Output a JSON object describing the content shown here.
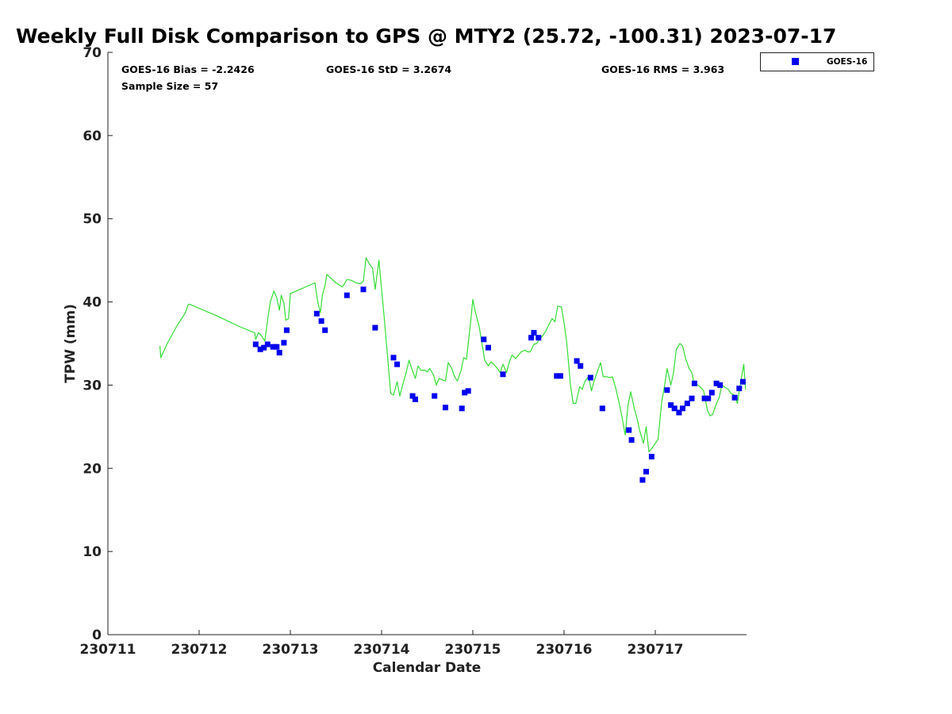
{
  "chart_data": {
    "type": "scatter",
    "title": "Weekly Full Disk Comparison to GPS @ MTY2 (25.72, -100.31) 2023-07-17",
    "xlabel": "Calendar Date",
    "ylabel": "TPW (mm)",
    "xlim_days": [
      11,
      18
    ],
    "ylim": [
      0,
      70
    ],
    "yticks": [
      0,
      10,
      20,
      30,
      40,
      50,
      60,
      70
    ],
    "xticks": [
      {
        "day": 11,
        "label": "230711"
      },
      {
        "day": 12,
        "label": "230712"
      },
      {
        "day": 13,
        "label": "230713"
      },
      {
        "day": 14,
        "label": "230714"
      },
      {
        "day": 15,
        "label": "230715"
      },
      {
        "day": 16,
        "label": "230716"
      },
      {
        "day": 17,
        "label": "230717"
      }
    ],
    "grid": false,
    "legend_position": "top-right",
    "stats": {
      "bias": "GOES-16 Bias = -2.2426",
      "std": "GOES-16 StD = 3.2674",
      "rms": "GOES-16 RMS = 3.963",
      "sample_size": "Sample Size = 57"
    },
    "colors": {
      "gps_line": "#33dd33",
      "goes16_marker": "#0000ee",
      "axis": "#222222"
    },
    "series": [
      {
        "name": "",
        "kind": "line",
        "x": [
          11.57,
          11.58,
          11.65,
          11.75,
          11.85,
          11.88,
          11.9,
          12.2,
          12.45,
          12.61,
          12.62,
          12.65,
          12.68,
          12.72,
          12.75,
          12.78,
          12.82,
          12.85,
          12.88,
          12.9,
          12.93,
          12.95,
          12.98,
          13.0,
          13.27,
          13.3,
          13.33,
          13.35,
          13.38,
          13.4,
          13.43,
          13.5,
          13.57,
          13.62,
          13.67,
          13.72,
          13.77,
          13.8,
          13.83,
          13.87,
          13.9,
          13.93,
          13.97,
          14.03,
          14.1,
          14.13,
          14.17,
          14.2,
          14.23,
          14.27,
          14.3,
          14.33,
          14.37,
          14.4,
          14.43,
          14.47,
          14.5,
          14.53,
          14.57,
          14.6,
          14.63,
          14.67,
          14.7,
          14.73,
          14.77,
          14.8,
          14.83,
          14.87,
          14.9,
          14.93,
          14.95,
          14.98,
          15.0,
          15.03,
          15.07,
          15.1,
          15.13,
          15.17,
          15.2,
          15.23,
          15.27,
          15.3,
          15.33,
          15.37,
          15.4,
          15.43,
          15.47,
          15.5,
          15.53,
          15.57,
          15.6,
          15.63,
          15.67,
          15.7,
          15.73,
          15.77,
          15.8,
          15.83,
          15.87,
          15.9,
          15.93,
          15.97,
          16.0,
          16.03,
          16.07,
          16.1,
          16.13,
          16.17,
          16.2,
          16.23,
          16.27,
          16.3,
          16.33,
          16.37,
          16.4,
          16.43,
          16.47,
          16.5,
          16.53,
          16.57,
          16.6,
          16.63,
          16.67,
          16.7,
          16.73,
          16.77,
          16.8,
          16.83,
          16.87,
          16.9,
          16.93,
          16.97,
          17.0,
          17.03,
          17.07,
          17.1,
          17.13,
          17.17,
          17.2,
          17.23,
          17.27,
          17.3,
          17.33,
          17.37,
          17.4,
          17.43,
          17.47,
          17.5,
          17.53,
          17.57,
          17.6,
          17.63,
          17.67,
          17.7,
          17.73,
          17.77,
          17.8,
          17.83,
          17.87,
          17.9,
          17.93,
          17.97,
          17.99
        ],
        "y": [
          34.7,
          33.3,
          35.0,
          37.0,
          38.7,
          39.7,
          39.7,
          38.3,
          37.0,
          36.3,
          35.5,
          36.3,
          36.0,
          35.3,
          37.8,
          40.0,
          41.3,
          40.5,
          39.0,
          40.8,
          39.8,
          37.8,
          38.0,
          41.0,
          42.3,
          40.0,
          38.7,
          40.8,
          42.0,
          43.3,
          43.0,
          42.3,
          41.8,
          42.7,
          42.6,
          42.3,
          42.2,
          42.5,
          45.3,
          44.5,
          44.1,
          41.5,
          45.0,
          38.0,
          29.0,
          28.8,
          30.4,
          28.7,
          30.0,
          31.5,
          33.0,
          32.0,
          30.8,
          32.3,
          31.8,
          31.8,
          31.6,
          32.0,
          31.2,
          30.0,
          30.8,
          30.6,
          30.5,
          32.7,
          32.0,
          31.0,
          30.5,
          31.7,
          33.3,
          33.1,
          35.0,
          38.0,
          40.3,
          38.7,
          37.0,
          35.0,
          33.0,
          32.3,
          32.8,
          32.5,
          32.0,
          31.5,
          32.5,
          31.5,
          32.8,
          33.6,
          33.2,
          33.6,
          34.0,
          34.2,
          34.0,
          34.0,
          34.9,
          35.0,
          35.5,
          36.0,
          36.5,
          37.2,
          38.0,
          37.6,
          39.5,
          39.4,
          37.5,
          35.0,
          30.0,
          27.8,
          27.8,
          29.8,
          29.5,
          30.5,
          31.0,
          29.3,
          30.5,
          31.8,
          32.7,
          31.0,
          31.0,
          30.9,
          31.0,
          29.5,
          28.0,
          26.5,
          24.0,
          27.5,
          29.2,
          27.2,
          26.0,
          24.5,
          23.0,
          25.0,
          22.0,
          22.5,
          23.0,
          23.5,
          28.0,
          29.8,
          32.0,
          30.0,
          31.5,
          34.3,
          35.0,
          34.7,
          33.3,
          32.0,
          31.5,
          30.0,
          30.0,
          29.7,
          29.3,
          27.0,
          26.3,
          26.5,
          27.8,
          28.5,
          30.0,
          29.7,
          29.5,
          29.0,
          28.8,
          27.8,
          30.0,
          32.5,
          29.5
        ]
      },
      {
        "name": "GOES-16",
        "kind": "scatter",
        "x": [
          12.62,
          12.67,
          12.71,
          12.75,
          12.81,
          12.85,
          12.88,
          12.93,
          12.96,
          13.29,
          13.34,
          13.38,
          13.62,
          13.8,
          13.93,
          14.13,
          14.17,
          14.34,
          14.37,
          14.58,
          14.7,
          14.88,
          14.91,
          14.95,
          15.12,
          15.17,
          15.33,
          15.64,
          15.67,
          15.72,
          15.92,
          15.96,
          16.14,
          16.18,
          16.29,
          16.42,
          16.71,
          16.74,
          16.86,
          16.9,
          16.96,
          17.13,
          17.17,
          17.21,
          17.26,
          17.3,
          17.35,
          17.4,
          17.43,
          17.54,
          17.58,
          17.62,
          17.67,
          17.71,
          17.87,
          17.92,
          17.96
        ],
        "y": [
          34.9,
          34.3,
          34.5,
          34.9,
          34.6,
          34.6,
          33.9,
          35.1,
          36.6,
          38.6,
          37.7,
          36.6,
          40.8,
          41.5,
          36.9,
          33.3,
          32.5,
          28.7,
          28.3,
          28.7,
          27.3,
          27.2,
          29.1,
          29.3,
          35.5,
          34.5,
          31.3,
          35.7,
          36.3,
          35.7,
          31.1,
          31.1,
          32.9,
          32.3,
          30.9,
          27.2,
          24.6,
          23.4,
          18.6,
          19.6,
          21.4,
          29.4,
          27.6,
          27.2,
          26.7,
          27.2,
          27.8,
          28.4,
          30.2,
          28.4,
          28.4,
          29.1,
          30.2,
          30.0,
          28.5,
          29.6,
          30.4
        ]
      }
    ]
  }
}
